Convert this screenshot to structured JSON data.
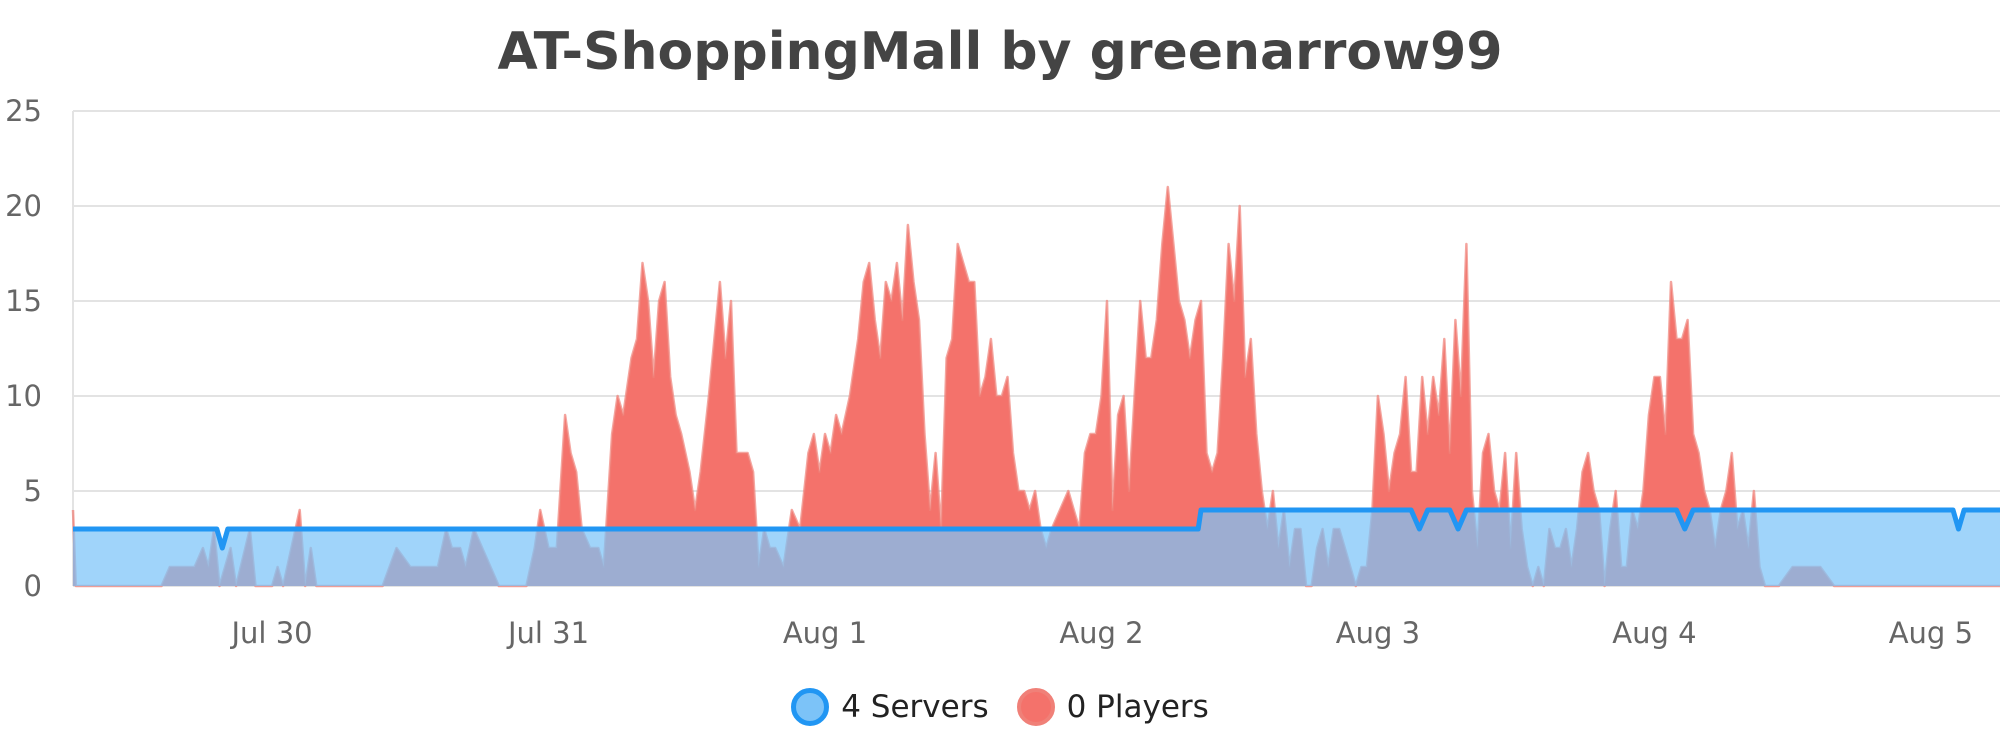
{
  "chart_data": {
    "type": "area",
    "title": "AT-ShoppingMall by greenarrow99",
    "x_tick_labels": [
      "Jul 30",
      "Jul 31",
      "Aug 1",
      "Aug 2",
      "Aug 3",
      "Aug 4",
      "Aug 5"
    ],
    "x_tick_positions_days": [
      1,
      2,
      3,
      4,
      5,
      6,
      7
    ],
    "x_range_days": [
      0.28,
      7.25
    ],
    "ylim": [
      0,
      25
    ],
    "y_ticks": [
      0,
      5,
      10,
      15,
      20,
      25
    ],
    "grid": true,
    "legend_position": "bottom-center",
    "series": [
      {
        "name": "4 Servers",
        "color": "#2196f3",
        "fill": "#7cc3f8",
        "points": [
          [
            0.28,
            3
          ],
          [
            0.8,
            3
          ],
          [
            0.82,
            2
          ],
          [
            0.84,
            3
          ],
          [
            4.35,
            3
          ],
          [
            4.36,
            4
          ],
          [
            5.12,
            4
          ],
          [
            5.15,
            3
          ],
          [
            5.18,
            4
          ],
          [
            5.26,
            4
          ],
          [
            5.29,
            3
          ],
          [
            5.32,
            4
          ],
          [
            6.08,
            4
          ],
          [
            6.11,
            3
          ],
          [
            6.14,
            4
          ],
          [
            7.08,
            4
          ],
          [
            7.1,
            3
          ],
          [
            7.12,
            4
          ],
          [
            7.25,
            4
          ]
        ]
      },
      {
        "name": "0 Players",
        "color": "#f08078",
        "fill": "#f4726b",
        "points": [
          [
            0.28,
            4
          ],
          [
            0.29,
            0
          ],
          [
            0.6,
            0
          ],
          [
            0.63,
            1
          ],
          [
            0.72,
            1
          ],
          [
            0.75,
            2
          ],
          [
            0.77,
            1
          ],
          [
            0.79,
            3
          ],
          [
            0.81,
            0
          ],
          [
            0.85,
            2
          ],
          [
            0.87,
            0
          ],
          [
            0.92,
            3
          ],
          [
            0.94,
            0
          ],
          [
            1.0,
            0
          ],
          [
            1.02,
            1
          ],
          [
            1.04,
            0
          ],
          [
            1.07,
            2
          ],
          [
            1.1,
            4
          ],
          [
            1.12,
            0
          ],
          [
            1.14,
            2
          ],
          [
            1.16,
            0
          ],
          [
            1.4,
            0
          ],
          [
            1.45,
            2
          ],
          [
            1.5,
            1
          ],
          [
            1.6,
            1
          ],
          [
            1.63,
            3
          ],
          [
            1.65,
            2
          ],
          [
            1.68,
            2
          ],
          [
            1.7,
            1
          ],
          [
            1.73,
            3
          ],
          [
            1.76,
            2
          ],
          [
            1.82,
            0
          ],
          [
            1.92,
            0
          ],
          [
            1.95,
            2
          ],
          [
            1.97,
            4
          ],
          [
            2.0,
            2
          ],
          [
            2.03,
            2
          ],
          [
            2.06,
            9
          ],
          [
            2.08,
            7
          ],
          [
            2.1,
            6
          ],
          [
            2.12,
            3
          ],
          [
            2.15,
            2
          ],
          [
            2.18,
            2
          ],
          [
            2.2,
            1
          ],
          [
            2.23,
            8
          ],
          [
            2.25,
            10
          ],
          [
            2.27,
            9
          ],
          [
            2.3,
            12
          ],
          [
            2.32,
            13
          ],
          [
            2.34,
            17
          ],
          [
            2.36,
            15
          ],
          [
            2.38,
            11
          ],
          [
            2.4,
            15
          ],
          [
            2.42,
            16
          ],
          [
            2.44,
            11
          ],
          [
            2.46,
            9
          ],
          [
            2.48,
            8
          ],
          [
            2.51,
            6
          ],
          [
            2.53,
            4
          ],
          [
            2.55,
            6
          ],
          [
            2.58,
            10
          ],
          [
            2.6,
            13
          ],
          [
            2.62,
            16
          ],
          [
            2.64,
            12
          ],
          [
            2.66,
            15
          ],
          [
            2.68,
            7
          ],
          [
            2.72,
            7
          ],
          [
            2.74,
            6
          ],
          [
            2.76,
            1
          ],
          [
            2.78,
            3
          ],
          [
            2.8,
            2
          ],
          [
            2.82,
            2
          ],
          [
            2.85,
            1
          ],
          [
            2.88,
            4
          ],
          [
            2.91,
            3
          ],
          [
            2.94,
            7
          ],
          [
            2.96,
            8
          ],
          [
            2.98,
            6
          ],
          [
            3.0,
            8
          ],
          [
            3.02,
            7
          ],
          [
            3.04,
            9
          ],
          [
            3.06,
            8
          ],
          [
            3.09,
            10
          ],
          [
            3.12,
            13
          ],
          [
            3.14,
            16
          ],
          [
            3.16,
            17
          ],
          [
            3.18,
            14
          ],
          [
            3.2,
            12
          ],
          [
            3.22,
            16
          ],
          [
            3.24,
            15
          ],
          [
            3.26,
            17
          ],
          [
            3.28,
            14
          ],
          [
            3.3,
            19
          ],
          [
            3.32,
            16
          ],
          [
            3.34,
            14
          ],
          [
            3.36,
            8
          ],
          [
            3.38,
            4
          ],
          [
            3.4,
            7
          ],
          [
            3.42,
            3
          ],
          [
            3.44,
            12
          ],
          [
            3.46,
            13
          ],
          [
            3.48,
            18
          ],
          [
            3.5,
            17
          ],
          [
            3.52,
            16
          ],
          [
            3.54,
            16
          ],
          [
            3.56,
            10
          ],
          [
            3.58,
            11
          ],
          [
            3.6,
            13
          ],
          [
            3.62,
            10
          ],
          [
            3.64,
            10
          ],
          [
            3.66,
            11
          ],
          [
            3.68,
            7
          ],
          [
            3.7,
            5
          ],
          [
            3.72,
            5
          ],
          [
            3.74,
            4
          ],
          [
            3.76,
            5
          ],
          [
            3.78,
            3
          ],
          [
            3.8,
            2
          ],
          [
            3.82,
            3
          ],
          [
            3.85,
            4
          ],
          [
            3.88,
            5
          ],
          [
            3.9,
            4
          ],
          [
            3.92,
            3
          ],
          [
            3.94,
            7
          ],
          [
            3.96,
            8
          ],
          [
            3.98,
            8
          ],
          [
            4.0,
            10
          ],
          [
            4.02,
            15
          ],
          [
            4.04,
            4
          ],
          [
            4.06,
            9
          ],
          [
            4.08,
            10
          ],
          [
            4.1,
            5
          ],
          [
            4.12,
            10
          ],
          [
            4.14,
            15
          ],
          [
            4.16,
            12
          ],
          [
            4.18,
            12
          ],
          [
            4.2,
            14
          ],
          [
            4.22,
            18
          ],
          [
            4.24,
            21
          ],
          [
            4.26,
            18
          ],
          [
            4.28,
            15
          ],
          [
            4.3,
            14
          ],
          [
            4.32,
            12
          ],
          [
            4.34,
            14
          ],
          [
            4.36,
            15
          ],
          [
            4.38,
            7
          ],
          [
            4.4,
            6
          ],
          [
            4.42,
            7
          ],
          [
            4.44,
            12
          ],
          [
            4.46,
            18
          ],
          [
            4.48,
            15
          ],
          [
            4.5,
            20
          ],
          [
            4.52,
            11
          ],
          [
            4.54,
            13
          ],
          [
            4.56,
            8
          ],
          [
            4.58,
            5
          ],
          [
            4.6,
            3
          ],
          [
            4.62,
            5
          ],
          [
            4.64,
            2
          ],
          [
            4.66,
            4
          ],
          [
            4.68,
            1
          ],
          [
            4.7,
            3
          ],
          [
            4.72,
            3
          ],
          [
            4.74,
            0
          ],
          [
            4.76,
            0
          ],
          [
            4.78,
            2
          ],
          [
            4.8,
            3
          ],
          [
            4.82,
            1
          ],
          [
            4.84,
            3
          ],
          [
            4.86,
            3
          ],
          [
            4.88,
            2
          ],
          [
            4.9,
            1
          ],
          [
            4.92,
            0
          ],
          [
            4.94,
            1
          ],
          [
            4.96,
            1
          ],
          [
            4.98,
            4
          ],
          [
            5.0,
            10
          ],
          [
            5.02,
            8
          ],
          [
            5.04,
            5
          ],
          [
            5.06,
            7
          ],
          [
            5.08,
            8
          ],
          [
            5.1,
            11
          ],
          [
            5.12,
            6
          ],
          [
            5.14,
            6
          ],
          [
            5.16,
            11
          ],
          [
            5.18,
            8
          ],
          [
            5.2,
            11
          ],
          [
            5.22,
            9
          ],
          [
            5.24,
            13
          ],
          [
            5.26,
            7
          ],
          [
            5.28,
            14
          ],
          [
            5.3,
            10
          ],
          [
            5.32,
            18
          ],
          [
            5.34,
            5
          ],
          [
            5.36,
            2
          ],
          [
            5.38,
            7
          ],
          [
            5.4,
            8
          ],
          [
            5.42,
            5
          ],
          [
            5.44,
            4
          ],
          [
            5.46,
            7
          ],
          [
            5.48,
            2
          ],
          [
            5.5,
            7
          ],
          [
            5.52,
            3
          ],
          [
            5.54,
            1
          ],
          [
            5.56,
            0
          ],
          [
            5.58,
            1
          ],
          [
            5.6,
            0
          ],
          [
            5.62,
            3
          ],
          [
            5.64,
            2
          ],
          [
            5.66,
            2
          ],
          [
            5.68,
            3
          ],
          [
            5.7,
            1
          ],
          [
            5.72,
            3
          ],
          [
            5.74,
            6
          ],
          [
            5.76,
            7
          ],
          [
            5.78,
            5
          ],
          [
            5.8,
            4
          ],
          [
            5.82,
            0
          ],
          [
            5.84,
            3
          ],
          [
            5.86,
            5
          ],
          [
            5.88,
            1
          ],
          [
            5.9,
            1
          ],
          [
            5.92,
            4
          ],
          [
            5.94,
            3
          ],
          [
            5.96,
            5
          ],
          [
            5.98,
            9
          ],
          [
            6.0,
            11
          ],
          [
            6.02,
            11
          ],
          [
            6.04,
            8
          ],
          [
            6.06,
            16
          ],
          [
            6.08,
            13
          ],
          [
            6.1,
            13
          ],
          [
            6.12,
            14
          ],
          [
            6.14,
            8
          ],
          [
            6.16,
            7
          ],
          [
            6.18,
            5
          ],
          [
            6.2,
            4
          ],
          [
            6.22,
            2
          ],
          [
            6.24,
            4
          ],
          [
            6.26,
            5
          ],
          [
            6.28,
            7
          ],
          [
            6.3,
            3
          ],
          [
            6.32,
            4
          ],
          [
            6.34,
            2
          ],
          [
            6.36,
            5
          ],
          [
            6.38,
            1
          ],
          [
            6.4,
            0
          ],
          [
            6.45,
            0
          ],
          [
            6.5,
            1
          ],
          [
            6.6,
            1
          ],
          [
            6.65,
            0
          ],
          [
            6.7,
            0
          ],
          [
            7.25,
            0
          ]
        ]
      }
    ]
  }
}
